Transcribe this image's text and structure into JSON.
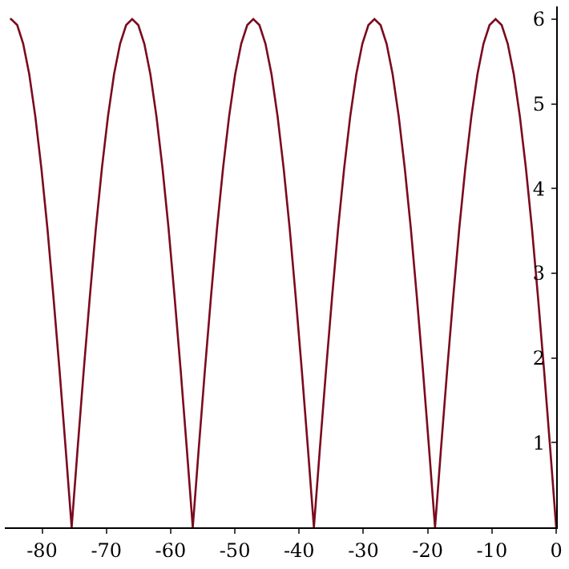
{
  "chart_data": {
    "type": "line",
    "x": [
      -85,
      -84.82,
      -83.87,
      -82.94,
      -82.0,
      -81.05,
      -80.11,
      -79.17,
      -78.23,
      -77.28,
      -76.34,
      -75.78,
      -75.4,
      -75.02,
      -74.46,
      -73.52,
      -72.57,
      -71.63,
      -70.69,
      -69.75,
      -68.8,
      -67.86,
      -66.92,
      -65.98,
      -65.03,
      -64.09,
      -63.15,
      -62.2,
      -61.26,
      -60.32,
      -59.38,
      -58.43,
      -57.49,
      -56.93,
      -56.55,
      -56.17,
      -55.61,
      -54.67,
      -53.72,
      -52.78,
      -51.84,
      -50.9,
      -49.95,
      -49.01,
      -48.07,
      -47.13,
      -46.18,
      -45.24,
      -44.3,
      -43.35,
      -42.41,
      -41.47,
      -40.53,
      -39.58,
      -38.64,
      -38.08,
      -37.7,
      -37.32,
      -36.76,
      -35.82,
      -34.87,
      -33.93,
      -32.99,
      -32.05,
      -31.1,
      -30.16,
      -29.22,
      -28.28,
      -27.33,
      -26.39,
      -25.45,
      -24.5,
      -23.56,
      -22.62,
      -21.68,
      -20.73,
      -19.79,
      -19.23,
      -18.85,
      -18.47,
      -17.91,
      -16.97,
      -16.02,
      -15.08,
      -14.14,
      -13.2,
      -12.25,
      -11.31,
      -10.37,
      -9.43,
      -8.48,
      -7.54,
      -6.6,
      -5.65,
      -4.71,
      -3.77,
      -2.83,
      -1.88,
      -0.94,
      -0.38,
      0
    ],
    "series": [
      {
        "color": "#7b0a1e",
        "values": [
          6,
          6,
          5.93,
          5.71,
          5.35,
          4.85,
          4.24,
          3.53,
          2.72,
          1.85,
          0.94,
          0.38,
          0,
          0.38,
          0.94,
          1.85,
          2.72,
          3.53,
          4.24,
          4.85,
          5.35,
          5.71,
          5.93,
          6,
          5.93,
          5.71,
          5.35,
          4.85,
          4.24,
          3.53,
          2.72,
          1.85,
          0.94,
          0.38,
          0,
          0.38,
          0.94,
          1.85,
          2.72,
          3.53,
          4.24,
          4.85,
          5.35,
          5.71,
          5.93,
          6,
          5.93,
          5.71,
          5.35,
          4.85,
          4.24,
          3.53,
          2.72,
          1.85,
          0.94,
          0.38,
          0,
          0.38,
          0.94,
          1.85,
          2.72,
          3.53,
          4.24,
          4.85,
          5.35,
          5.71,
          5.93,
          6,
          5.93,
          5.71,
          5.35,
          4.85,
          4.24,
          3.53,
          2.72,
          1.85,
          0.94,
          0.38,
          0,
          0.38,
          0.94,
          1.85,
          2.72,
          3.53,
          4.24,
          4.85,
          5.35,
          5.71,
          5.93,
          6,
          5.93,
          5.71,
          5.35,
          4.85,
          4.24,
          3.53,
          2.72,
          1.85,
          0.94,
          0.38,
          0
        ]
      }
    ],
    "xlim": [
      -85.8,
      0
    ],
    "xticks": [
      -80,
      -70,
      -60,
      -50,
      -40,
      -30,
      -20,
      -10,
      0
    ],
    "ylim": [
      0,
      6.15
    ],
    "yticks": [
      1,
      2,
      3,
      4,
      5,
      6
    ],
    "marker": "none",
    "line_style": "solid"
  }
}
